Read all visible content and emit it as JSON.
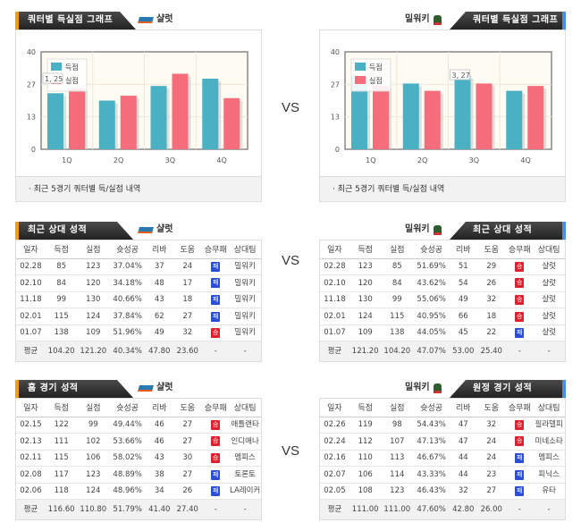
{
  "vs_label": "VS",
  "colors": {
    "scored": "#4ab0c4",
    "conceded": "#f56c7a",
    "win": "#e0202e",
    "loss": "#2a4fd6"
  },
  "home_team": "샬럿",
  "away_team": "밀워키",
  "charts": {
    "title": "쿼터별 득실점 그래프",
    "footer": "· 최근 5경기 쿼터별 득/실점 내역",
    "chart_data": [
      {
        "type": "bar",
        "team": "샬럿",
        "categories": [
          "1Q",
          "2Q",
          "3Q",
          "4Q"
        ],
        "ylim": [
          0,
          40
        ],
        "yticks": [
          "0",
          "13",
          "27",
          "40"
        ],
        "series": [
          {
            "name": "득점",
            "values": [
              23,
              20,
              26,
              29
            ]
          },
          {
            "name": "실점",
            "values": [
              25,
              22,
              31,
              21
            ]
          }
        ],
        "tooltip": "1, 25"
      },
      {
        "type": "bar",
        "team": "밀워키",
        "categories": [
          "1Q",
          "2Q",
          "3Q",
          "4Q"
        ],
        "ylim": [
          0,
          40
        ],
        "yticks": [
          "0",
          "13",
          "27",
          "40"
        ],
        "series": [
          {
            "name": "득점",
            "values": [
              30,
              27,
              30,
              24
            ]
          },
          {
            "name": "실점",
            "values": [
              26,
              24,
              27,
              26
            ]
          }
        ],
        "tooltip": "3, 27"
      }
    ]
  },
  "columns": [
    "일자",
    "득점",
    "실점",
    "슛성공",
    "리바",
    "도움",
    "승무패",
    "상대팀"
  ],
  "tables": [
    {
      "title": "최근 상대 성적",
      "team": "샬럿",
      "side": "l",
      "rows": [
        [
          "02.28",
          "85",
          "123",
          "37.04%",
          "37",
          "24",
          "패",
          "밀워키"
        ],
        [
          "02.10",
          "84",
          "120",
          "34.18%",
          "48",
          "17",
          "패",
          "밀워키"
        ],
        [
          "11.18",
          "99",
          "130",
          "40.66%",
          "43",
          "18",
          "패",
          "밀워키"
        ],
        [
          "02.01",
          "115",
          "124",
          "37.84%",
          "62",
          "27",
          "패",
          "밀워키"
        ],
        [
          "01.07",
          "138",
          "109",
          "51.96%",
          "49",
          "32",
          "승",
          "밀워키"
        ]
      ],
      "avg": [
        "평균",
        "104.20",
        "121.20",
        "40.34%",
        "47.80",
        "23.60",
        "-",
        "-"
      ]
    },
    {
      "title": "최근 상대 성적",
      "team": "밀워키",
      "side": "r",
      "rows": [
        [
          "02.28",
          "123",
          "85",
          "51.69%",
          "51",
          "29",
          "승",
          "샬럿"
        ],
        [
          "02.10",
          "120",
          "84",
          "43.62%",
          "54",
          "26",
          "승",
          "샬럿"
        ],
        [
          "11.18",
          "130",
          "99",
          "55.06%",
          "49",
          "32",
          "승",
          "샬럿"
        ],
        [
          "02.01",
          "124",
          "115",
          "40.95%",
          "66",
          "18",
          "승",
          "샬럿"
        ],
        [
          "01.07",
          "109",
          "138",
          "44.05%",
          "45",
          "22",
          "패",
          "샬럿"
        ]
      ],
      "avg": [
        "평균",
        "121.20",
        "104.20",
        "47.07%",
        "53.00",
        "25.40",
        "-",
        "-"
      ]
    },
    {
      "title": "홈 경기 성적",
      "team": "샬럿",
      "side": "l",
      "rows": [
        [
          "02.15",
          "122",
          "99",
          "49.44%",
          "46",
          "27",
          "승",
          "애틀랜타"
        ],
        [
          "02.13",
          "111",
          "102",
          "53.66%",
          "46",
          "27",
          "승",
          "인디애나"
        ],
        [
          "02.11",
          "115",
          "106",
          "58.02%",
          "43",
          "30",
          "승",
          "멤피스"
        ],
        [
          "02.08",
          "117",
          "123",
          "48.89%",
          "38",
          "27",
          "패",
          "토론토"
        ],
        [
          "02.06",
          "118",
          "124",
          "48.96%",
          "34",
          "26",
          "패",
          "LA레이커"
        ]
      ],
      "avg": [
        "평균",
        "116.60",
        "110.80",
        "51.79%",
        "41.40",
        "27.40",
        "-",
        "-"
      ]
    },
    {
      "title": "원정 경기 성적",
      "team": "밀워키",
      "side": "r",
      "rows": [
        [
          "02.26",
          "119",
          "98",
          "54.43%",
          "47",
          "32",
          "승",
          "필라델피"
        ],
        [
          "02.24",
          "112",
          "107",
          "47.13%",
          "47",
          "24",
          "승",
          "미네소타"
        ],
        [
          "02.16",
          "110",
          "113",
          "46.67%",
          "44",
          "24",
          "패",
          "멤피스"
        ],
        [
          "02.07",
          "106",
          "114",
          "43.33%",
          "44",
          "23",
          "패",
          "피닉스"
        ],
        [
          "02.05",
          "108",
          "123",
          "46.43%",
          "32",
          "27",
          "패",
          "유타"
        ]
      ],
      "avg": [
        "평균",
        "111.00",
        "111.00",
        "47.60%",
        "42.80",
        "26.00",
        "-",
        "-"
      ]
    }
  ]
}
